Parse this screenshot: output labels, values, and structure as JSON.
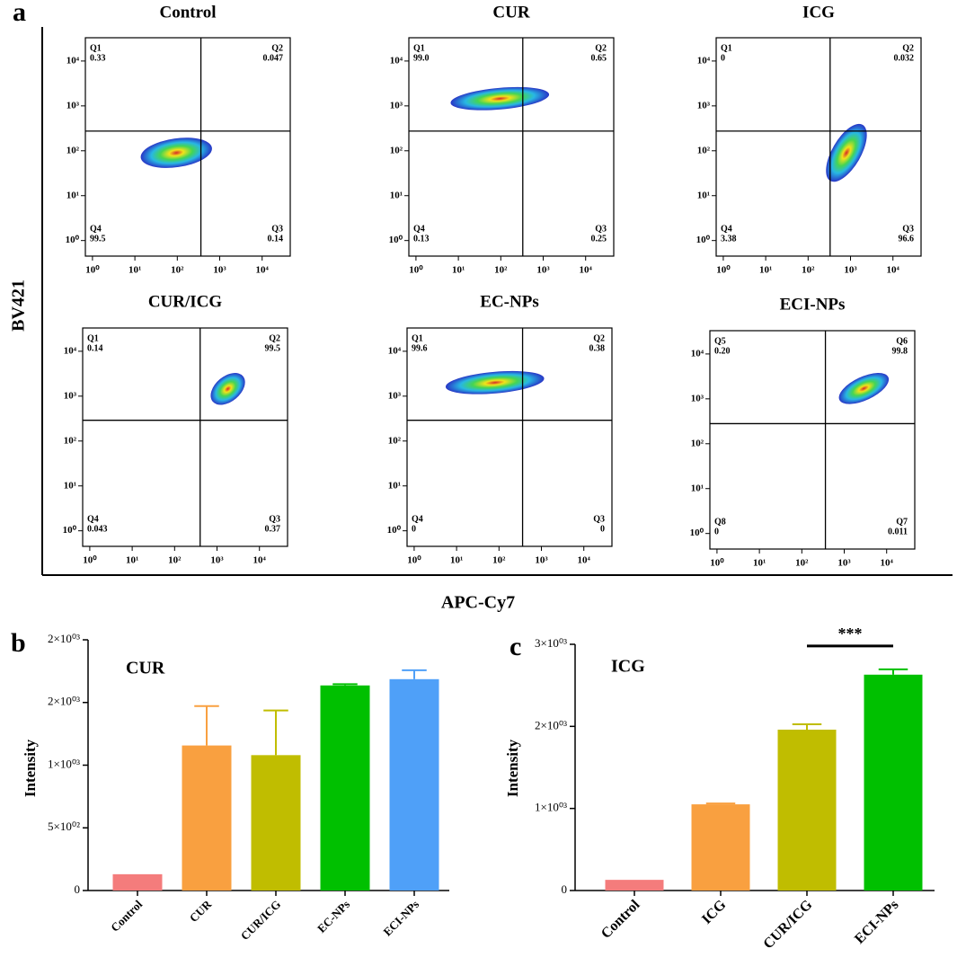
{
  "panel_labels": [
    "a",
    "b",
    "c"
  ],
  "shared_axes": {
    "y_label": "BV421",
    "x_label": "APC-Cy7"
  },
  "chart_data": [
    {
      "type": "density",
      "title": "Control",
      "log": true,
      "xlim": [
        0.68,
        46000
      ],
      "ylim": [
        0.45,
        33000
      ],
      "xticks": [
        {
          "value": 1,
          "label": "10⁰"
        },
        {
          "value": 10,
          "label": "10¹"
        },
        {
          "value": 100,
          "label": "10²"
        },
        {
          "value": 1000,
          "label": "10³"
        },
        {
          "value": 10000,
          "label": "10⁴"
        }
      ],
      "yticks": [
        {
          "value": 1,
          "label": "10⁰"
        },
        {
          "value": 10,
          "label": "10¹"
        },
        {
          "value": 100,
          "label": "10²"
        },
        {
          "value": 1000,
          "label": "10³"
        },
        {
          "value": 10000,
          "label": "10⁴"
        }
      ],
      "gates": {
        "x": 360,
        "y": 275
      },
      "cluster": {
        "x": 95,
        "y": 90
      },
      "quadrants": [
        "Q1",
        "Q2",
        "Q3",
        "Q4"
      ],
      "values": [
        0.33,
        0.047,
        0.14,
        99.5
      ]
    },
    {
      "type": "density",
      "title": "CUR",
      "log": true,
      "xlim": [
        0.68,
        46000
      ],
      "ylim": [
        0.45,
        33000
      ],
      "xticks": [
        {
          "value": 1,
          "label": "10⁰"
        },
        {
          "value": 10,
          "label": "10¹"
        },
        {
          "value": 100,
          "label": "10²"
        },
        {
          "value": 1000,
          "label": "10³"
        },
        {
          "value": 10000,
          "label": "10⁴"
        }
      ],
      "yticks": [
        {
          "value": 1,
          "label": "10⁰"
        },
        {
          "value": 10,
          "label": "10¹"
        },
        {
          "value": 100,
          "label": "10²"
        },
        {
          "value": 1000,
          "label": "10³"
        },
        {
          "value": 10000,
          "label": "10⁴"
        }
      ],
      "gates": {
        "x": 330,
        "y": 275
      },
      "cluster": {
        "x": 95,
        "y": 1450
      },
      "quadrants": [
        "Q1",
        "Q2",
        "Q3",
        "Q4"
      ],
      "values": [
        99.0,
        0.65,
        0.25,
        0.13
      ],
      "value_labels": [
        "99.0",
        "0.65",
        "0.25",
        "0.13"
      ]
    },
    {
      "type": "density",
      "title": "ICG",
      "log": true,
      "xlim": [
        0.68,
        46000
      ],
      "ylim": [
        0.45,
        33000
      ],
      "xticks": [
        {
          "value": 1,
          "label": "10⁰"
        },
        {
          "value": 10,
          "label": "10¹"
        },
        {
          "value": 100,
          "label": "10²"
        },
        {
          "value": 1000,
          "label": "10³"
        },
        {
          "value": 10000,
          "label": "10⁴"
        }
      ],
      "yticks": [
        {
          "value": 1,
          "label": "10⁰"
        },
        {
          "value": 10,
          "label": "10¹"
        },
        {
          "value": 100,
          "label": "10²"
        },
        {
          "value": 1000,
          "label": "10³"
        },
        {
          "value": 10000,
          "label": "10⁴"
        }
      ],
      "gates": {
        "x": 330,
        "y": 275
      },
      "cluster": {
        "x": 800,
        "y": 90
      },
      "quadrants": [
        "Q1",
        "Q2",
        "Q3",
        "Q4"
      ],
      "values": [
        0,
        0.032,
        96.6,
        3.38
      ]
    },
    {
      "type": "density",
      "title": "CUR/ICG",
      "log": true,
      "xlim": [
        0.68,
        46000
      ],
      "ylim": [
        0.45,
        33000
      ],
      "xticks": [
        {
          "value": 1,
          "label": "10⁰"
        },
        {
          "value": 10,
          "label": "10¹"
        },
        {
          "value": 100,
          "label": "10²"
        },
        {
          "value": 1000,
          "label": "10³"
        },
        {
          "value": 10000,
          "label": "10⁴"
        }
      ],
      "yticks": [
        {
          "value": 1,
          "label": "10⁰"
        },
        {
          "value": 10,
          "label": "10¹"
        },
        {
          "value": 100,
          "label": "10²"
        },
        {
          "value": 1000,
          "label": "10³"
        },
        {
          "value": 10000,
          "label": "10⁴"
        }
      ],
      "gates": {
        "x": 400,
        "y": 290
      },
      "cluster": {
        "x": 1800,
        "y": 1450
      },
      "quadrants": [
        "Q1",
        "Q2",
        "Q3",
        "Q4"
      ],
      "values": [
        0.14,
        99.5,
        0.37,
        0.043
      ]
    },
    {
      "type": "density",
      "title": "EC-NPs",
      "log": true,
      "xlim": [
        0.68,
        46000
      ],
      "ylim": [
        0.45,
        33000
      ],
      "xticks": [
        {
          "value": 1,
          "label": "10⁰"
        },
        {
          "value": 10,
          "label": "10¹"
        },
        {
          "value": 100,
          "label": "10²"
        },
        {
          "value": 1000,
          "label": "10³"
        },
        {
          "value": 10000,
          "label": "10⁴"
        }
      ],
      "yticks": [
        {
          "value": 1,
          "label": "10⁰"
        },
        {
          "value": 10,
          "label": "10¹"
        },
        {
          "value": 100,
          "label": "10²"
        },
        {
          "value": 1000,
          "label": "10³"
        },
        {
          "value": 10000,
          "label": "10⁴"
        }
      ],
      "gates": {
        "x": 360,
        "y": 290
      },
      "cluster": {
        "x": 80,
        "y": 2000
      },
      "quadrants": [
        "Q1",
        "Q2",
        "Q3",
        "Q4"
      ],
      "values": [
        99.6,
        0.38,
        0,
        0
      ]
    },
    {
      "type": "density",
      "title": "ECI-NPs",
      "log": true,
      "xlim": [
        0.68,
        46000
      ],
      "ylim": [
        0.45,
        33000
      ],
      "xticks": [
        {
          "value": 1,
          "label": "10⁰"
        },
        {
          "value": 10,
          "label": "10¹"
        },
        {
          "value": 100,
          "label": "10²"
        },
        {
          "value": 1000,
          "label": "10³"
        },
        {
          "value": 10000,
          "label": "10⁴"
        }
      ],
      "yticks": [
        {
          "value": 1,
          "label": "10⁰"
        },
        {
          "value": 10,
          "label": "10¹"
        },
        {
          "value": 100,
          "label": "10²"
        },
        {
          "value": 1000,
          "label": "10³"
        },
        {
          "value": 10000,
          "label": "10⁴"
        }
      ],
      "gates": {
        "x": 360,
        "y": 280
      },
      "cluster": {
        "x": 2900,
        "y": 1700
      },
      "quadrants": [
        "Q5",
        "Q6",
        "Q7",
        "Q8"
      ],
      "values": [
        0.2,
        99.8,
        0.011,
        0
      ],
      "value_labels": [
        "0.20",
        "99.8",
        "0.011",
        "0"
      ]
    },
    {
      "type": "bar",
      "title": "CUR",
      "y_label": "Intensity",
      "categories": [
        "Control",
        "CUR",
        "CUR/ICG",
        "EC-NPs",
        "ECI-NPs"
      ],
      "values": [
        130,
        1157,
        1080,
        1636,
        1686
      ],
      "errors": [
        0,
        314,
        356,
        10,
        71
      ],
      "colors": [
        "#f47c7c",
        "#f9a040",
        "#c0bd00",
        "#00c000",
        "#4fa0f8"
      ],
      "ylim": [
        0,
        2000
      ],
      "yticks": [
        0,
        {
          "value": 500,
          "label": "5×10⁰²"
        },
        {
          "value": 1000,
          "label": "1×10⁰³"
        },
        {
          "value": 1500,
          "label": "2×10⁰³"
        },
        {
          "value": 2000,
          "label": "2×10⁰³"
        }
      ]
    },
    {
      "type": "bar",
      "title": "ICG",
      "y_label": "Intensity",
      "categories": [
        "Control",
        "ICG",
        "CUR/ICG",
        "ECI-NPs"
      ],
      "values": [
        130,
        1050,
        1960,
        2630
      ],
      "errors": [
        0,
        10,
        65,
        65
      ],
      "colors": [
        "#f47c7c",
        "#f9a040",
        "#c0bd00",
        "#00c000"
      ],
      "ylim": [
        0,
        3000
      ],
      "yticks": [
        0,
        {
          "value": 1000,
          "label": "1×10⁰³"
        },
        {
          "value": 2000,
          "label": "2×10⁰³"
        },
        {
          "value": 3000,
          "label": "3×10⁰³"
        }
      ],
      "annotations": [
        {
          "text": "***",
          "from": "CUR/ICG",
          "to": "ECI-NPs"
        }
      ]
    }
  ]
}
